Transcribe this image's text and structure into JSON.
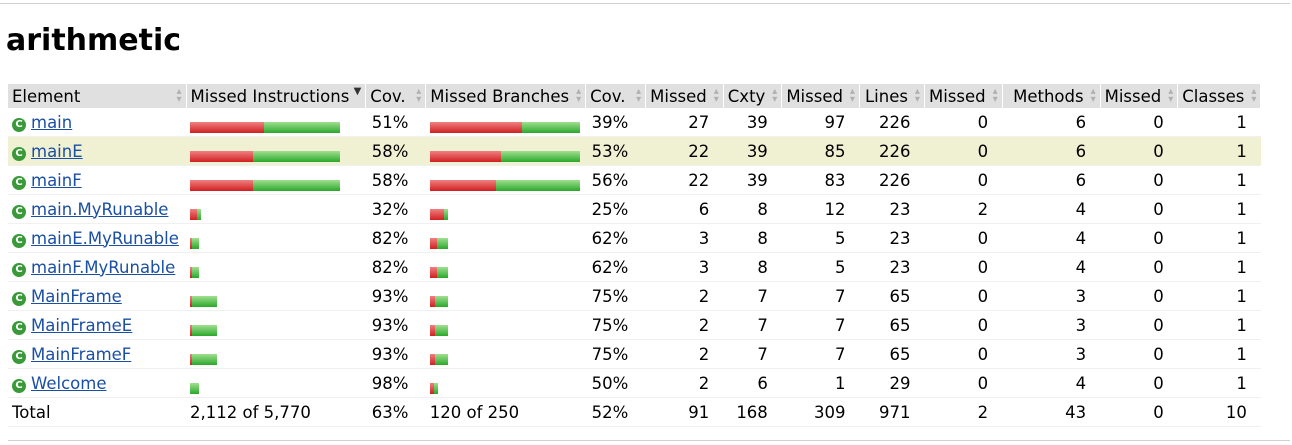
{
  "page": {
    "title": "arithmetic"
  },
  "table": {
    "headers": [
      "Element",
      "Missed Instructions",
      "Cov.",
      "Missed Branches",
      "Cov.",
      "Missed",
      "Cxty",
      "Missed",
      "Lines",
      "Missed",
      "Methods",
      "Missed",
      "Classes"
    ],
    "rows": [
      {
        "name": "main",
        "instr_missed_frac": 0.49,
        "instr_cov": "51%",
        "br_missed_frac": 0.61,
        "br_cov": "39%",
        "cx_missed": "27",
        "cxty": "39",
        "ln_missed": "97",
        "lines": "226",
        "m_missed": "0",
        "methods": "6",
        "c_missed": "0",
        "classes": "1",
        "highlight": false
      },
      {
        "name": "mainE",
        "instr_missed_frac": 0.42,
        "instr_cov": "58%",
        "br_missed_frac": 0.47,
        "br_cov": "53%",
        "cx_missed": "22",
        "cxty": "39",
        "ln_missed": "85",
        "lines": "226",
        "m_missed": "0",
        "methods": "6",
        "c_missed": "0",
        "classes": "1",
        "highlight": true
      },
      {
        "name": "mainF",
        "instr_missed_frac": 0.42,
        "instr_cov": "58%",
        "br_missed_frac": 0.44,
        "br_cov": "56%",
        "cx_missed": "22",
        "cxty": "39",
        "ln_missed": "83",
        "lines": "226",
        "m_missed": "0",
        "methods": "6",
        "c_missed": "0",
        "classes": "1",
        "highlight": false
      },
      {
        "name": "main.MyRunable",
        "instr_missed_frac": 0.68,
        "instr_cov": "32%",
        "br_missed_frac": 0.75,
        "br_cov": "25%",
        "cx_missed": "6",
        "cxty": "8",
        "ln_missed": "12",
        "lines": "23",
        "m_missed": "2",
        "methods": "4",
        "c_missed": "0",
        "classes": "1",
        "highlight": false
      },
      {
        "name": "mainE.MyRunable",
        "instr_missed_frac": 0.18,
        "instr_cov": "82%",
        "br_missed_frac": 0.38,
        "br_cov": "62%",
        "cx_missed": "3",
        "cxty": "8",
        "ln_missed": "5",
        "lines": "23",
        "m_missed": "0",
        "methods": "4",
        "c_missed": "0",
        "classes": "1",
        "highlight": false
      },
      {
        "name": "mainF.MyRunable",
        "instr_missed_frac": 0.18,
        "instr_cov": "82%",
        "br_missed_frac": 0.38,
        "br_cov": "62%",
        "cx_missed": "3",
        "cxty": "8",
        "ln_missed": "5",
        "lines": "23",
        "m_missed": "0",
        "methods": "4",
        "c_missed": "0",
        "classes": "1",
        "highlight": false
      },
      {
        "name": "MainFrame",
        "instr_missed_frac": 0.07,
        "instr_cov": "93%",
        "br_missed_frac": 0.25,
        "br_cov": "75%",
        "cx_missed": "2",
        "cxty": "7",
        "ln_missed": "7",
        "lines": "65",
        "m_missed": "0",
        "methods": "3",
        "c_missed": "0",
        "classes": "1",
        "highlight": false
      },
      {
        "name": "MainFrameE",
        "instr_missed_frac": 0.07,
        "instr_cov": "93%",
        "br_missed_frac": 0.25,
        "br_cov": "75%",
        "cx_missed": "2",
        "cxty": "7",
        "ln_missed": "7",
        "lines": "65",
        "m_missed": "0",
        "methods": "3",
        "c_missed": "0",
        "classes": "1",
        "highlight": false
      },
      {
        "name": "MainFrameF",
        "instr_missed_frac": 0.07,
        "instr_cov": "93%",
        "br_missed_frac": 0.25,
        "br_cov": "75%",
        "cx_missed": "2",
        "cxty": "7",
        "ln_missed": "7",
        "lines": "65",
        "m_missed": "0",
        "methods": "3",
        "c_missed": "0",
        "classes": "1",
        "highlight": false
      },
      {
        "name": "Welcome",
        "instr_missed_frac": 0.02,
        "instr_cov": "98%",
        "br_missed_frac": 0.5,
        "br_cov": "50%",
        "cx_missed": "2",
        "cxty": "6",
        "ln_missed": "1",
        "lines": "29",
        "m_missed": "0",
        "methods": "4",
        "c_missed": "0",
        "classes": "1",
        "highlight": false
      }
    ],
    "total": {
      "label": "Total",
      "instr": "2,112 of 5,770",
      "instr_cov": "63%",
      "br": "120 of 250",
      "br_cov": "52%",
      "cx_missed": "91",
      "cxty": "168",
      "ln_missed": "309",
      "lines": "971",
      "m_missed": "2",
      "methods": "43",
      "c_missed": "0",
      "classes": "10"
    }
  },
  "colors": {
    "missed": "#d02020",
    "covered": "#2aa82a",
    "link": "#1a4fa3",
    "highlight_row": "#f0f0d2",
    "header_bg": "#e0e0e0"
  },
  "icons": {
    "class": "class-icon",
    "sort": "sort-icon",
    "sort_active": "sort-desc-icon"
  }
}
